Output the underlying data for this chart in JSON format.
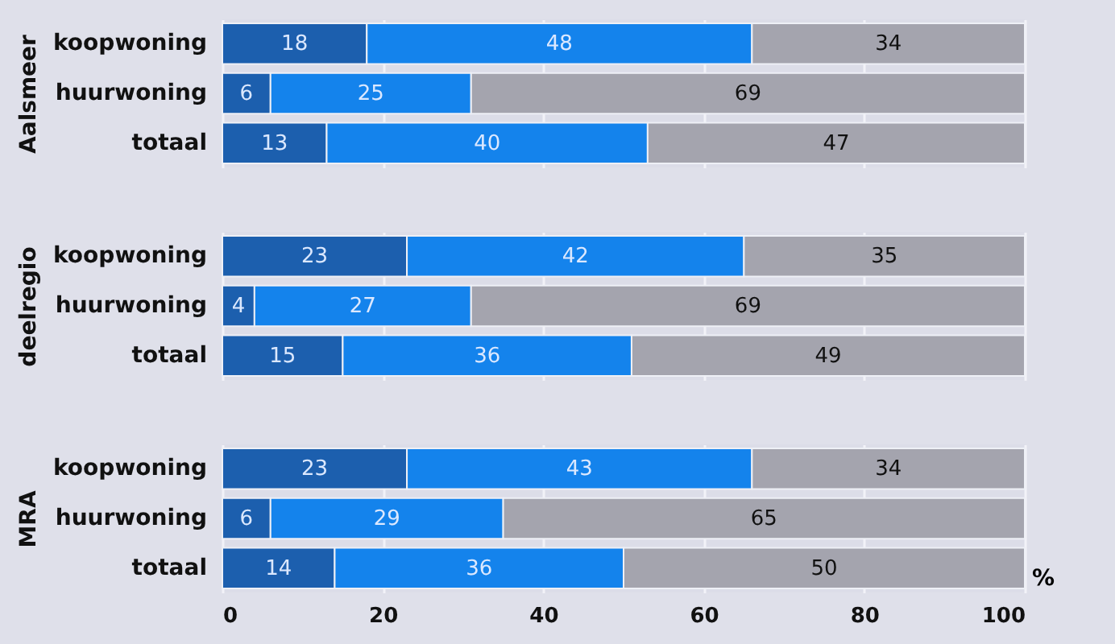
{
  "chart_data": [
    {
      "type": "bar",
      "orientation": "horizontal",
      "stacked": true,
      "ylabel": "Aalsmeer",
      "categories": [
        "koopwoning",
        "huurwoning",
        "totaal"
      ],
      "series": [
        {
          "color": "#1c5fae",
          "values": [
            18,
            6,
            13
          ]
        },
        {
          "color": "#1483ec",
          "values": [
            48,
            25,
            40
          ]
        },
        {
          "color": "#a4a4ae",
          "values": [
            34,
            69,
            47
          ]
        }
      ],
      "xlim": [
        0,
        100
      ],
      "xticks": [
        0,
        20,
        40,
        60,
        80,
        100
      ],
      "grid": "x",
      "data_labels": true,
      "tick_labels": "y"
    },
    {
      "type": "bar",
      "orientation": "horizontal",
      "stacked": true,
      "ylabel": "deelregio",
      "categories": [
        "koopwoning",
        "huurwoning",
        "totaal"
      ],
      "series": [
        {
          "color": "#1c5fae",
          "values": [
            23,
            4,
            15
          ]
        },
        {
          "color": "#1483ec",
          "values": [
            42,
            27,
            36
          ]
        },
        {
          "color": "#a4a4ae",
          "values": [
            35,
            69,
            49
          ]
        }
      ],
      "xlim": [
        0,
        100
      ],
      "xticks": [
        0,
        20,
        40,
        60,
        80,
        100
      ],
      "grid": "x",
      "data_labels": true,
      "tick_labels": "y"
    },
    {
      "type": "bar",
      "orientation": "horizontal",
      "stacked": true,
      "ylabel": "MRA",
      "xlabel": "%",
      "categories": [
        "koopwoning",
        "huurwoning",
        "totaal"
      ],
      "series": [
        {
          "color": "#1c5fae",
          "values": [
            23,
            6,
            14
          ]
        },
        {
          "color": "#1483ec",
          "values": [
            43,
            29,
            36
          ]
        },
        {
          "color": "#a4a4ae",
          "values": [
            34,
            65,
            50
          ]
        }
      ],
      "xlim": [
        0,
        100
      ],
      "xticks": [
        0,
        20,
        40,
        60,
        80,
        100
      ],
      "grid": "x",
      "data_labels": true
    }
  ]
}
